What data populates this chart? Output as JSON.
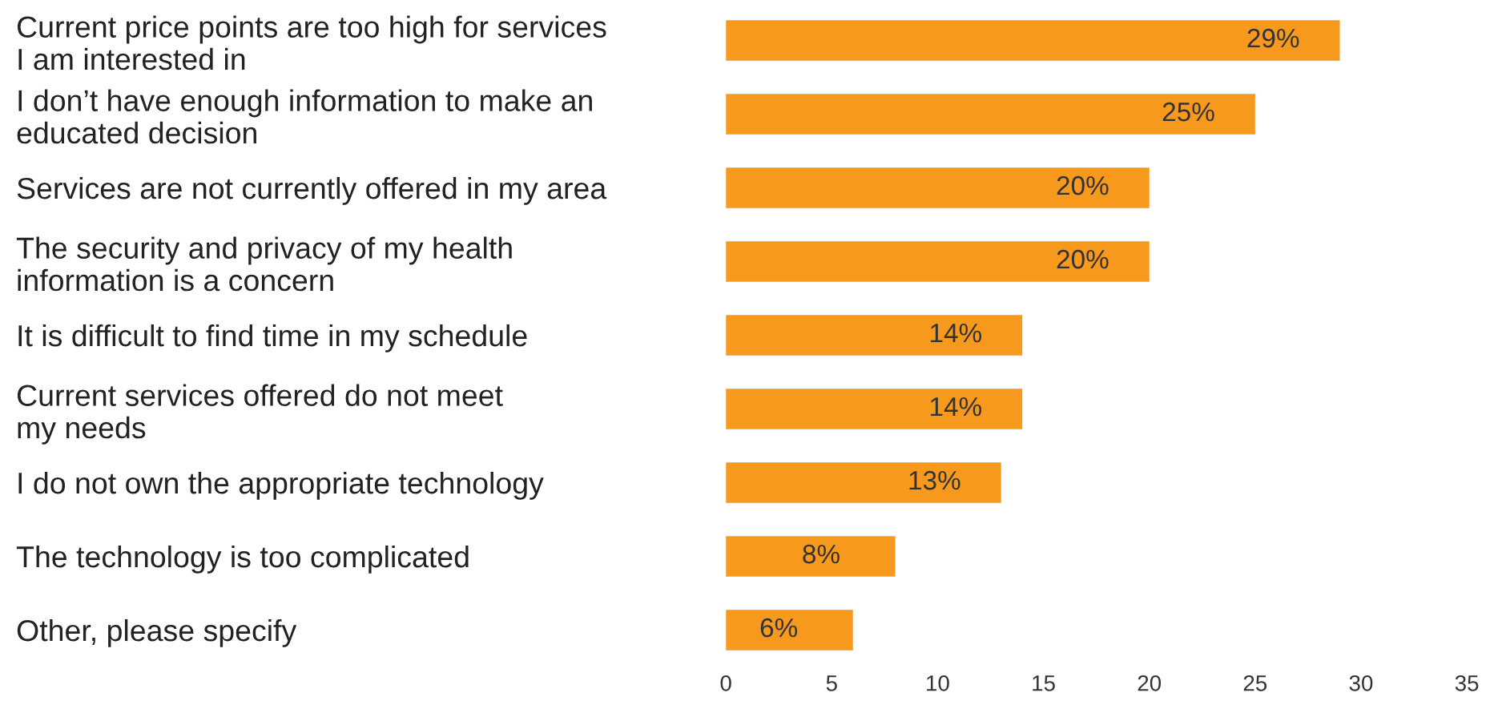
{
  "chart_data": {
    "type": "bar",
    "orientation": "horizontal",
    "categories": [
      "Current price points are too high for services\nI am interested in",
      "I don’t have enough information to make an\neducated decision",
      "Services are not currently offered in my area",
      "The security and privacy of my health\ninformation is a concern",
      "It is difficult to find time in my schedule",
      "Current services offered do not meet\nmy needs",
      "I do not own the appropriate technology",
      "The technology is too complicated",
      "Other, please specify"
    ],
    "values": [
      29,
      25,
      20,
      20,
      14,
      14,
      13,
      8,
      6
    ],
    "value_labels": [
      "29%",
      "25%",
      "20%",
      "20%",
      "14%",
      "14%",
      "13%",
      "8%",
      "6%"
    ],
    "color": "#f7991c",
    "xlim": [
      0,
      35
    ],
    "xticks": [
      0,
      5,
      10,
      15,
      20,
      25,
      30,
      35
    ],
    "grid": false,
    "legend": false
  }
}
